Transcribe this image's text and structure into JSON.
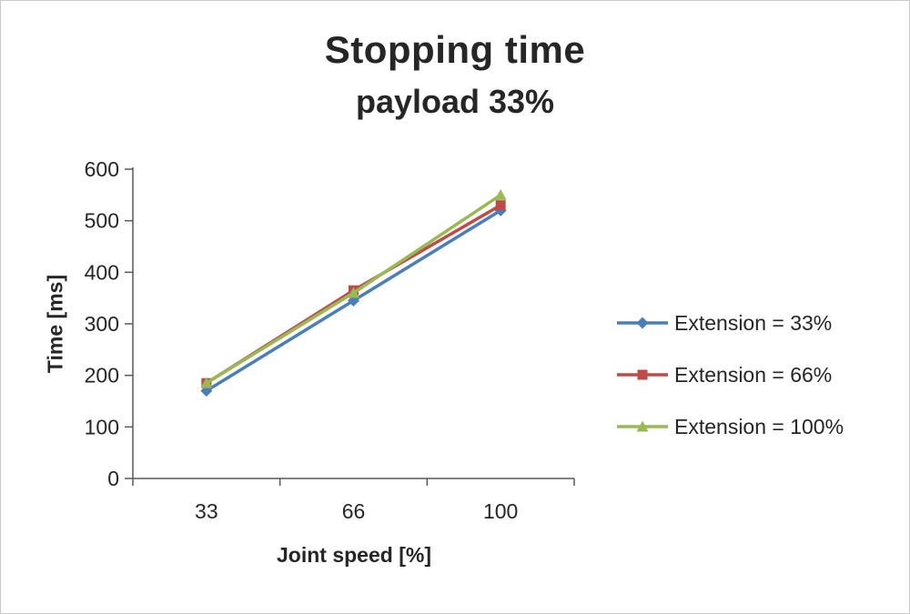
{
  "chart_data": {
    "type": "line",
    "title": "Stopping time",
    "subtitle": "payload 33%",
    "xlabel": "Joint speed [%]",
    "ylabel": "Time [ms]",
    "categories": [
      "33",
      "66",
      "100"
    ],
    "ylim": [
      0,
      600
    ],
    "ytick_step": 100,
    "yticks": [
      0,
      100,
      200,
      300,
      400,
      500,
      600
    ],
    "grid": false,
    "legend_position": "right",
    "axis_color": "#595959",
    "text_color": "#262626",
    "series": [
      {
        "name": "Extension = 33%",
        "values": [
          170,
          345,
          520
        ],
        "color": "#4a7ebb",
        "marker": "diamond"
      },
      {
        "name": "Extension = 66%",
        "values": [
          185,
          365,
          530
        ],
        "color": "#be4b48",
        "marker": "square"
      },
      {
        "name": "Extension = 100%",
        "values": [
          185,
          360,
          550
        ],
        "color": "#98b954",
        "marker": "triangle"
      }
    ]
  }
}
